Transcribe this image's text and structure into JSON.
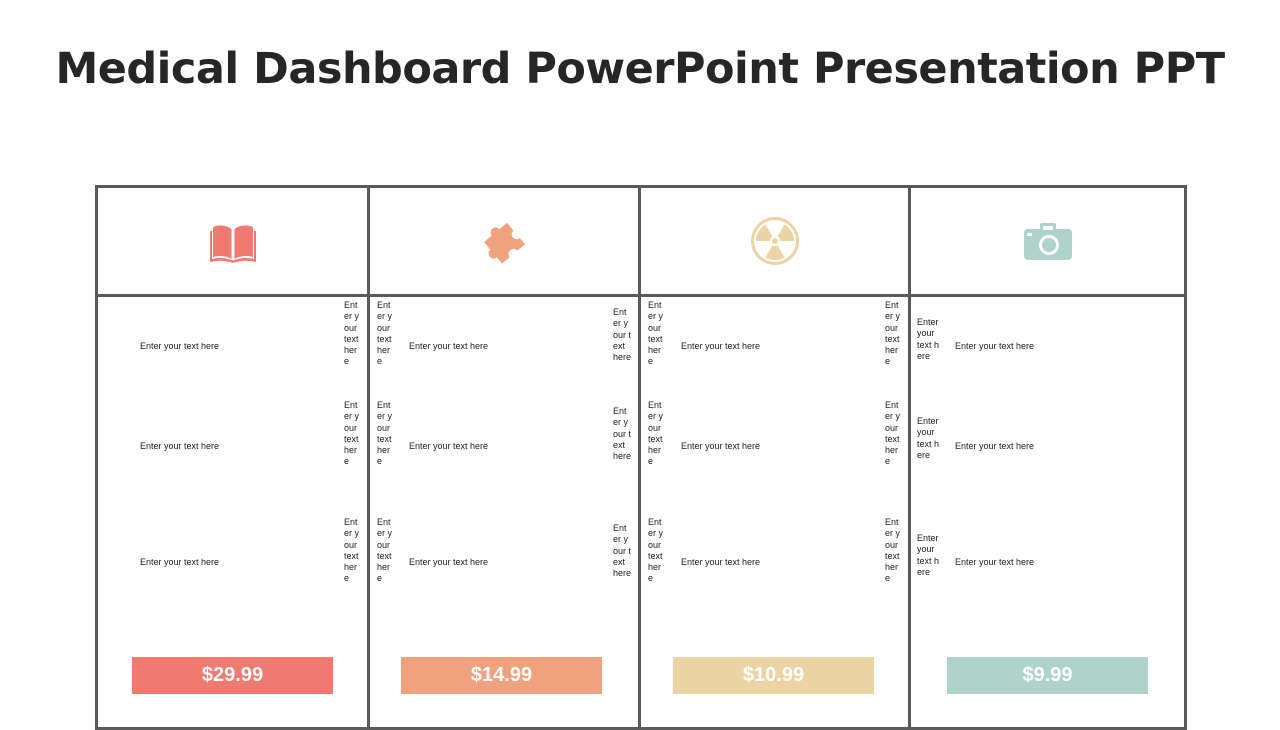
{
  "title": "Medical Dashboard PowerPoint Presentation PPT",
  "columns": [
    {
      "icon": "book-icon",
      "color": "#f07a70",
      "price": "$29.99",
      "rows": [
        {
          "main": "Enter your text here",
          "side_right": "Enter your text here"
        },
        {
          "main": "Enter your text here",
          "side_right": "Enter your text here"
        },
        {
          "main": "Enter your text here",
          "side_right": "Enter your text here"
        }
      ]
    },
    {
      "icon": "puzzle-piece-icon",
      "color": "#f0a27f",
      "price": "$14.99",
      "rows": [
        {
          "side_left": "Enter your text here",
          "main": "Enter your text here",
          "side_right": "Enter your text here"
        },
        {
          "side_left": "Enter your text here",
          "main": "Enter your text here",
          "side_right": "Enter your text here"
        },
        {
          "side_left": "Enter your text here",
          "main": "Enter your text here",
          "side_right": "Enter your text here"
        }
      ]
    },
    {
      "icon": "radiation-icon",
      "color": "#ecd3a3",
      "price": "$10.99",
      "rows": [
        {
          "side_left": "Enter your text here",
          "main": "Enter your text here",
          "side_right": "Enter your text here"
        },
        {
          "side_left": "Enter your text here",
          "main": "Enter your text here",
          "side_right": "Enter your text here"
        },
        {
          "side_left": "Enter your text here",
          "main": "Enter your text here",
          "side_right": "Enter your text here"
        }
      ]
    },
    {
      "icon": "camera-icon",
      "color": "#afd3ca",
      "price": "$9.99",
      "rows": [
        {
          "side_left": "Enter your text here",
          "main": "Enter your text here"
        },
        {
          "side_left": "Enter your text here",
          "main": "Enter your text here"
        },
        {
          "side_left": "Enter your text here",
          "main": "Enter your text here"
        }
      ]
    }
  ]
}
